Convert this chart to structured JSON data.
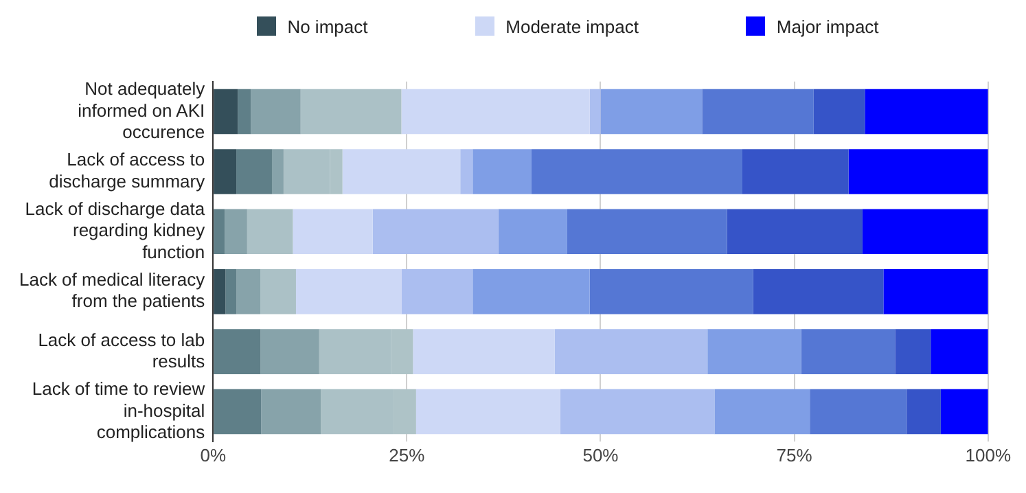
{
  "chart_data": {
    "type": "bar",
    "orientation": "horizontal",
    "stacked": true,
    "categories": [
      "Not adequately informed on AKI occurence",
      "Lack of access to discharge summary",
      "Lack of discharge data regarding kidney function",
      "Lack of medical literacy from the patients",
      "Lack of access to lab results",
      "Lack of time to review in-hospital complications"
    ],
    "series": [
      {
        "name": "No impact",
        "color": "#344f5a",
        "values": [
          3.2,
          3.0,
          0,
          1.6,
          0,
          0
        ]
      },
      {
        "color": "#5f7f88",
        "values": [
          1.7,
          4.6,
          1.5,
          1.4,
          6.1,
          6.2
        ]
      },
      {
        "color": "#87a3aa",
        "values": [
          6.4,
          1.5,
          2.9,
          3.1,
          7.6,
          7.7
        ]
      },
      {
        "color": "#abc1c6",
        "values": [
          13.0,
          6.0,
          5.9,
          4.6,
          9.3,
          9.3
        ]
      },
      {
        "color": "#aec3c7",
        "values": [
          0,
          1.6,
          0,
          0,
          2.8,
          3.0
        ]
      },
      {
        "name": "Moderate impact",
        "color": "#cdd8f6",
        "values": [
          24.3,
          15.2,
          10.3,
          13.6,
          18.3,
          18.6
        ]
      },
      {
        "color": "#abbef0",
        "values": [
          1.4,
          1.6,
          16.2,
          9.2,
          19.7,
          19.9
        ]
      },
      {
        "color": "#7f9ee6",
        "values": [
          13.1,
          7.6,
          8.9,
          15.1,
          12.1,
          12.3
        ]
      },
      {
        "color": "#5577d4",
        "values": [
          14.4,
          27.2,
          20.6,
          21.1,
          12.1,
          12.5
        ]
      },
      {
        "color": "#3654c8",
        "values": [
          6.6,
          13.7,
          17.5,
          16.8,
          4.6,
          4.4
        ]
      },
      {
        "name": "Major impact",
        "color": "#0000ff",
        "values": [
          15.9,
          18.0,
          16.2,
          13.5,
          7.4,
          6.1
        ]
      }
    ],
    "xlim": [
      0,
      100
    ],
    "xticks": [
      {
        "value": 0,
        "label": "0%"
      },
      {
        "value": 25,
        "label": "25%"
      },
      {
        "value": 50,
        "label": "50%"
      },
      {
        "value": 75,
        "label": "75%"
      },
      {
        "value": 100,
        "label": "100%"
      }
    ],
    "grid": "x",
    "legend": "top"
  }
}
